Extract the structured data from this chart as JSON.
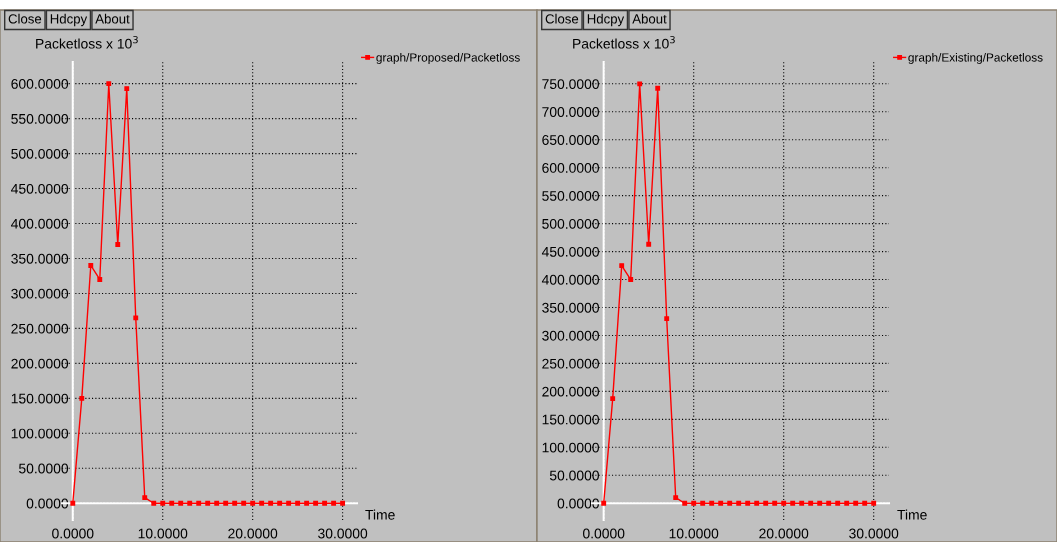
{
  "chart_data": [
    {
      "type": "line",
      "ylabel": "Packetloss x 10$^{3}$",
      "xlabel": "Time",
      "annotations": [
        "Close",
        "Hdcpy",
        "About"
      ],
      "x": [
        0,
        1,
        2,
        3,
        4,
        5,
        6,
        7,
        8,
        9,
        10,
        11,
        12,
        13,
        14,
        15,
        16,
        17,
        18,
        19,
        20,
        21,
        22,
        23,
        24,
        25,
        26,
        27,
        28,
        29,
        30
      ],
      "series": [
        {
          "name": "graph/Proposed/Packetloss",
          "color": "#ff0000",
          "values": [
            0,
            150,
            340,
            320,
            600,
            370,
            593,
            265,
            8,
            0,
            0,
            0,
            0,
            0,
            0,
            0,
            0,
            0,
            0,
            0,
            0,
            0,
            0,
            0,
            0,
            0,
            0,
            0,
            0,
            0,
            0
          ]
        }
      ],
      "xlim": [
        -1.2,
        31.6
      ],
      "ylim": [
        -24,
        631
      ],
      "xticks": [
        {
          "value": 0,
          "label": "0.0000"
        },
        {
          "value": 10,
          "label": "10.0000"
        },
        {
          "value": 20,
          "label": "20.0000"
        },
        {
          "value": 30,
          "label": "30.0000"
        }
      ],
      "yticks": [
        {
          "value": 0,
          "label": "0.0000"
        },
        {
          "value": 50,
          "label": "50.0000"
        },
        {
          "value": 100,
          "label": "100.0000"
        },
        {
          "value": 150,
          "label": "150.0000"
        },
        {
          "value": 200,
          "label": "200.0000"
        },
        {
          "value": 250,
          "label": "250.0000"
        },
        {
          "value": 300,
          "label": "300.0000"
        },
        {
          "value": 350,
          "label": "350.0000"
        },
        {
          "value": 400,
          "label": "400.0000"
        },
        {
          "value": 450,
          "label": "450.0000"
        },
        {
          "value": 500,
          "label": "500.0000"
        },
        {
          "value": 550,
          "label": "550.0000"
        },
        {
          "value": 600,
          "label": "600.0000"
        }
      ],
      "grid": true,
      "legend": "right",
      "marker": "square",
      "line_style": "solid"
    },
    {
      "type": "line",
      "ylabel": "Packetloss x 10$^{3}$",
      "xlabel": "Time",
      "annotations": [
        "Close",
        "Hdcpy",
        "About"
      ],
      "x": [
        0,
        1,
        2,
        3,
        4,
        5,
        6,
        7,
        8,
        9,
        10,
        11,
        12,
        13,
        14,
        15,
        16,
        17,
        18,
        19,
        20,
        21,
        22,
        23,
        24,
        25,
        26,
        27,
        28,
        29,
        30
      ],
      "series": [
        {
          "name": "graph/Existing/Packetloss",
          "color": "#ff0000",
          "values": [
            0,
            187,
            425,
            400,
            750,
            463,
            742,
            330,
            10,
            0,
            0,
            0,
            0,
            0,
            0,
            0,
            0,
            0,
            0,
            0,
            0,
            0,
            0,
            0,
            0,
            0,
            0,
            0,
            0,
            0,
            0
          ]
        }
      ],
      "xlim": [
        -1.3,
        31.7
      ],
      "ylim": [
        -30,
        789
      ],
      "xticks": [
        {
          "value": 0,
          "label": "0.0000"
        },
        {
          "value": 10,
          "label": "10.0000"
        },
        {
          "value": 20,
          "label": "20.0000"
        },
        {
          "value": 30,
          "label": "30.0000"
        }
      ],
      "yticks": [
        {
          "value": 0,
          "label": "0.0000"
        },
        {
          "value": 50,
          "label": "50.0000"
        },
        {
          "value": 100,
          "label": "100.0000"
        },
        {
          "value": 150,
          "label": "150.0000"
        },
        {
          "value": 200,
          "label": "200.0000"
        },
        {
          "value": 250,
          "label": "250.0000"
        },
        {
          "value": 300,
          "label": "300.0000"
        },
        {
          "value": 350,
          "label": "350.0000"
        },
        {
          "value": 400,
          "label": "400.0000"
        },
        {
          "value": 450,
          "label": "450.0000"
        },
        {
          "value": 500,
          "label": "500.0000"
        },
        {
          "value": 550,
          "label": "550.0000"
        },
        {
          "value": 600,
          "label": "600.0000"
        },
        {
          "value": 650,
          "label": "650.0000"
        },
        {
          "value": 700,
          "label": "700.0000"
        },
        {
          "value": 750,
          "label": "750.0000"
        }
      ],
      "grid": true,
      "legend": "right",
      "marker": "square",
      "line_style": "solid"
    }
  ]
}
